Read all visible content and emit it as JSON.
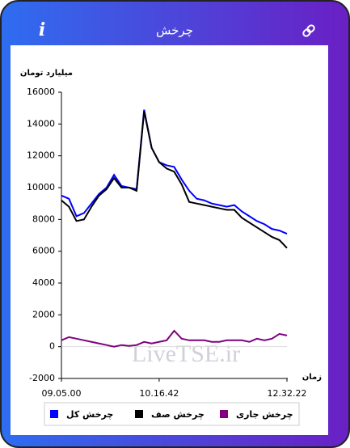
{
  "header": {
    "title": "چرخش",
    "info_icon": "i"
  },
  "watermark": "LiveTSE.ir",
  "chart_data": {
    "type": "line",
    "y_axis_label": "میلیارد تومان",
    "x_axis_label": "زمان",
    "categories": [
      "09.05.00",
      null,
      null,
      null,
      null,
      null,
      null,
      null,
      null,
      null,
      null,
      null,
      null,
      "10.16.42",
      null,
      null,
      null,
      null,
      null,
      null,
      null,
      null,
      null,
      null,
      null,
      null,
      null,
      null,
      null,
      null,
      "12.32.22"
    ],
    "series": [
      {
        "name": "چرخش کل",
        "color": "#0000ff",
        "values": [
          9500,
          9300,
          8200,
          8400,
          9000,
          9600,
          10000,
          10800,
          10100,
          10000,
          9900,
          14900,
          12500,
          11600,
          11400,
          11300,
          10500,
          9800,
          9300,
          9200,
          9000,
          8900,
          8800,
          8900,
          8500,
          8200,
          7900,
          7700,
          7400,
          7300,
          7100
        ]
      },
      {
        "name": "چرخش صف",
        "color": "#000000",
        "values": [
          9200,
          8800,
          7900,
          8000,
          8800,
          9500,
          9900,
          10600,
          10000,
          10000,
          9800,
          14800,
          12500,
          11600,
          11200,
          11000,
          10200,
          9100,
          9000,
          8900,
          8800,
          8700,
          8600,
          8600,
          8100,
          7800,
          7500,
          7200,
          6900,
          6700,
          6200
        ]
      },
      {
        "name": "چرخش جاری",
        "color": "#800080",
        "values": [
          400,
          600,
          500,
          400,
          300,
          200,
          100,
          0,
          100,
          50,
          100,
          300,
          200,
          300,
          400,
          1000,
          500,
          400,
          400,
          400,
          300,
          300,
          400,
          400,
          400,
          300,
          500,
          400,
          500,
          800,
          700
        ]
      }
    ],
    "ylim": [
      -2000,
      16000
    ],
    "yticks": [
      -2000,
      0,
      2000,
      4000,
      6000,
      8000,
      10000,
      12000,
      14000,
      16000
    ]
  }
}
